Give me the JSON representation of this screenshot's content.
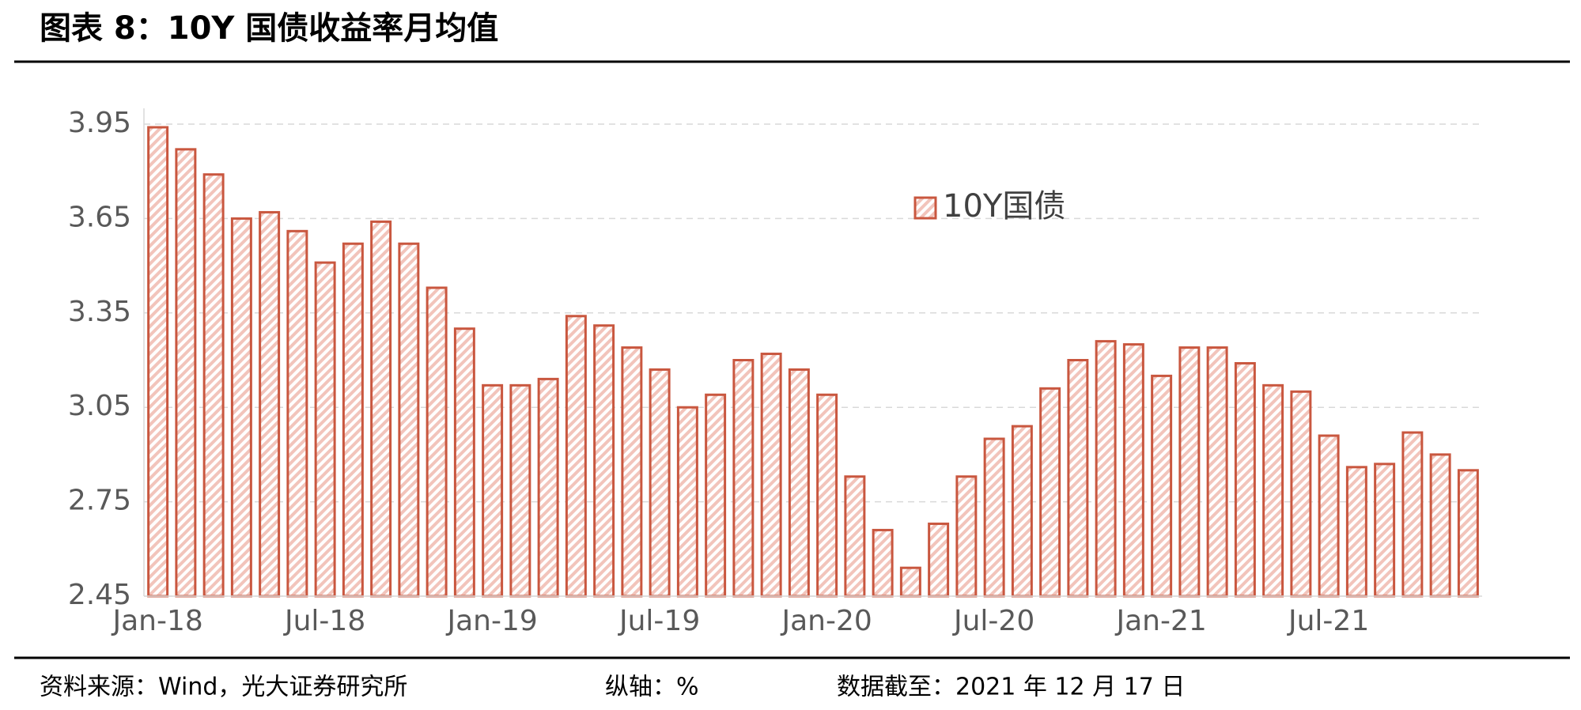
{
  "chart_data": {
    "type": "bar",
    "title": "图表 8：10Y 国债收益率月均值",
    "source": "资料来源：Wind，光大证券研究所",
    "axis_note": "纵轴：%",
    "date_note": "数据截至：2021 年 12 月 17 日",
    "categories": [
      "Jan-18",
      null,
      null,
      null,
      null,
      null,
      "Jul-18",
      null,
      null,
      null,
      null,
      null,
      "Jan-19",
      null,
      null,
      null,
      null,
      null,
      "Jul-19",
      null,
      null,
      null,
      null,
      null,
      "Jan-20",
      null,
      null,
      null,
      null,
      null,
      "Jul-20",
      null,
      null,
      null,
      null,
      null,
      "Jan-21",
      null,
      null,
      null,
      null,
      null,
      "Jul-21",
      null,
      null,
      null,
      null,
      null
    ],
    "series": [
      {
        "name": "10Y国债",
        "color": "#c9573f",
        "values": [
          3.94,
          3.87,
          3.79,
          3.65,
          3.67,
          3.61,
          3.51,
          3.57,
          3.64,
          3.57,
          3.43,
          3.3,
          3.12,
          3.12,
          3.14,
          3.34,
          3.31,
          3.24,
          3.17,
          3.05,
          3.09,
          3.2,
          3.22,
          3.17,
          3.09,
          2.83,
          2.66,
          2.54,
          2.68,
          2.83,
          2.95,
          2.99,
          3.11,
          3.2,
          3.26,
          3.25,
          3.15,
          3.24,
          3.24,
          3.19,
          3.12,
          3.1,
          2.96,
          2.86,
          2.87,
          2.97,
          2.9,
          2.85
        ]
      }
    ],
    "ylim": [
      2.45,
      3.95
    ],
    "yticks": [
      2.45,
      2.75,
      3.05,
      3.35,
      3.65,
      3.95
    ],
    "grid": true
  }
}
